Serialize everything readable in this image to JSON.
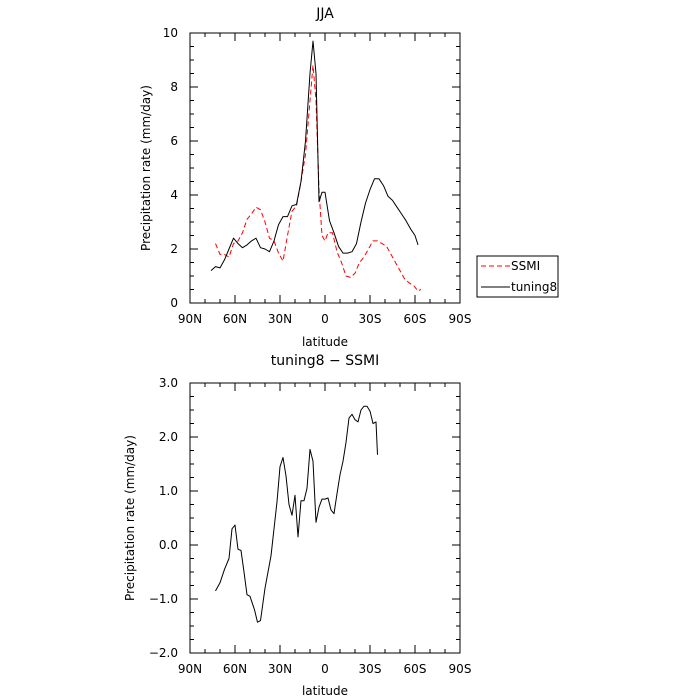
{
  "chart_data": [
    {
      "type": "line",
      "title": "JJA",
      "xlabel": "latitude",
      "ylabel": "Precipitation rate (mm/day)",
      "xlim": [
        90,
        -90
      ],
      "ylim": [
        0,
        10
      ],
      "x_ticks": [
        90,
        60,
        30,
        0,
        -30,
        -60,
        -90
      ],
      "x_tick_labels": [
        "90N",
        "60N",
        "30N",
        "0",
        "30S",
        "60S",
        "90S"
      ],
      "y_ticks": [
        0,
        2,
        4,
        6,
        8,
        10
      ],
      "y_tick_labels": [
        "0",
        "2",
        "4",
        "6",
        "8",
        "10"
      ],
      "legend": {
        "placement": "right-bottom-outside",
        "entries": [
          "SSMI",
          "tuning8"
        ]
      },
      "series": [
        {
          "name": "SSMI",
          "color": "#ff0000",
          "dash": "dashed",
          "points": [
            [
              73,
              2.2
            ],
            [
              70,
              1.8
            ],
            [
              67,
              1.8
            ],
            [
              64,
              1.7
            ],
            [
              61,
              2.2
            ],
            [
              58,
              2.3
            ],
            [
              55,
              2.6
            ],
            [
              52,
              3.1
            ],
            [
              49,
              3.3
            ],
            [
              46,
              3.55
            ],
            [
              43,
              3.45
            ],
            [
              40,
              3.0
            ],
            [
              37,
              2.4
            ],
            [
              34,
              2.3
            ],
            [
              31,
              1.85
            ],
            [
              28,
              1.55
            ],
            [
              25,
              2.5
            ],
            [
              22,
              3.4
            ],
            [
              19,
              3.6
            ],
            [
              16,
              4.5
            ],
            [
              13,
              5.5
            ],
            [
              10,
              7.5
            ],
            [
              8,
              8.8
            ],
            [
              6,
              7.5
            ],
            [
              4,
              4.2
            ],
            [
              2,
              2.5
            ],
            [
              0,
              2.3
            ],
            [
              -2,
              2.6
            ],
            [
              -5,
              2.6
            ],
            [
              -8,
              1.9
            ],
            [
              -11,
              1.5
            ],
            [
              -14,
              1.0
            ],
            [
              -17,
              0.95
            ],
            [
              -20,
              1.1
            ],
            [
              -23,
              1.5
            ],
            [
              -26,
              1.7
            ],
            [
              -29,
              2.0
            ],
            [
              -32,
              2.3
            ],
            [
              -35,
              2.3
            ],
            [
              -38,
              2.2
            ],
            [
              -41,
              2.1
            ],
            [
              -44,
              1.8
            ],
            [
              -47,
              1.5
            ],
            [
              -50,
              1.2
            ],
            [
              -53,
              0.9
            ],
            [
              -56,
              0.75
            ],
            [
              -59,
              0.65
            ],
            [
              -62,
              0.45
            ],
            [
              -64,
              0.5
            ]
          ]
        },
        {
          "name": "tuning8",
          "color": "#000000",
          "dash": "solid",
          "points": [
            [
              76,
              1.2
            ],
            [
              73,
              1.35
            ],
            [
              70,
              1.3
            ],
            [
              67,
              1.6
            ],
            [
              64,
              2.0
            ],
            [
              61,
              2.4
            ],
            [
              58,
              2.2
            ],
            [
              55,
              2.05
            ],
            [
              52,
              2.15
            ],
            [
              49,
              2.3
            ],
            [
              46,
              2.4
            ],
            [
              43,
              2.05
            ],
            [
              40,
              2.0
            ],
            [
              37,
              1.9
            ],
            [
              34,
              2.3
            ],
            [
              31,
              2.9
            ],
            [
              28,
              3.2
            ],
            [
              25,
              3.2
            ],
            [
              22,
              3.6
            ],
            [
              19,
              3.65
            ],
            [
              16,
              4.5
            ],
            [
              13,
              6.0
            ],
            [
              10,
              8.5
            ],
            [
              8,
              9.7
            ],
            [
              6,
              8.5
            ],
            [
              4,
              3.75
            ],
            [
              2,
              4.1
            ],
            [
              0,
              4.1
            ],
            [
              -3,
              3.05
            ],
            [
              -6,
              2.6
            ],
            [
              -9,
              2.1
            ],
            [
              -12,
              1.85
            ],
            [
              -15,
              1.85
            ],
            [
              -18,
              1.9
            ],
            [
              -21,
              2.2
            ],
            [
              -24,
              3.0
            ],
            [
              -27,
              3.7
            ],
            [
              -30,
              4.2
            ],
            [
              -33,
              4.6
            ],
            [
              -36,
              4.6
            ],
            [
              -39,
              4.35
            ],
            [
              -42,
              3.95
            ],
            [
              -45,
              3.8
            ],
            [
              -48,
              3.55
            ],
            [
              -51,
              3.3
            ],
            [
              -54,
              3.05
            ],
            [
              -57,
              2.75
            ],
            [
              -60,
              2.5
            ],
            [
              -62,
              2.15
            ]
          ]
        }
      ]
    },
    {
      "type": "line",
      "title": "tuning8 − SSMI",
      "xlabel": "latitude",
      "ylabel": "Precipitation rate (mm/day)",
      "xlim": [
        90,
        -90
      ],
      "ylim": [
        -2,
        3
      ],
      "x_ticks": [
        90,
        60,
        30,
        0,
        -30,
        -60,
        -90
      ],
      "x_tick_labels": [
        "90N",
        "60N",
        "30N",
        "0",
        "30S",
        "60S",
        "90S"
      ],
      "y_ticks": [
        -2,
        -1,
        0,
        1,
        2,
        3
      ],
      "y_tick_labels": [
        "−2.0",
        "−1.0",
        "0.0",
        "1.0",
        "2.0",
        "3.0"
      ],
      "series": [
        {
          "color": "#000000",
          "dash": "solid",
          "points": [
            [
              73,
              -0.85
            ],
            [
              70,
              -0.7
            ],
            [
              67,
              -0.45
            ],
            [
              64,
              -0.25
            ],
            [
              62,
              0.3
            ],
            [
              60,
              0.37
            ],
            [
              58,
              -0.08
            ],
            [
              56,
              -0.1
            ],
            [
              54,
              -0.5
            ],
            [
              52,
              -0.92
            ],
            [
              50,
              -0.95
            ],
            [
              47,
              -1.2
            ],
            [
              45,
              -1.43
            ],
            [
              43,
              -1.4
            ],
            [
              40,
              -0.8
            ],
            [
              38,
              -0.5
            ],
            [
              36,
              -0.2
            ],
            [
              34,
              0.3
            ],
            [
              32,
              0.8
            ],
            [
              30,
              1.45
            ],
            [
              28,
              1.62
            ],
            [
              26,
              1.28
            ],
            [
              24,
              0.75
            ],
            [
              22,
              0.55
            ],
            [
              20,
              0.92
            ],
            [
              18,
              0.15
            ],
            [
              16,
              0.82
            ],
            [
              14,
              0.82
            ],
            [
              12,
              1.05
            ],
            [
              10,
              1.77
            ],
            [
              8,
              1.55
            ],
            [
              6,
              0.42
            ],
            [
              4,
              0.7
            ],
            [
              2,
              0.85
            ],
            [
              0,
              0.85
            ],
            [
              -2,
              0.87
            ],
            [
              -4,
              0.65
            ],
            [
              -6,
              0.58
            ],
            [
              -8,
              0.95
            ],
            [
              -10,
              1.3
            ],
            [
              -12,
              1.55
            ],
            [
              -14,
              1.9
            ],
            [
              -16,
              2.35
            ],
            [
              -18,
              2.42
            ],
            [
              -20,
              2.32
            ],
            [
              -22,
              2.28
            ],
            [
              -24,
              2.5
            ],
            [
              -26,
              2.57
            ],
            [
              -28,
              2.57
            ],
            [
              -30,
              2.48
            ],
            [
              -32,
              2.25
            ],
            [
              -34,
              2.28
            ],
            [
              -35,
              1.67
            ]
          ]
        }
      ]
    }
  ]
}
